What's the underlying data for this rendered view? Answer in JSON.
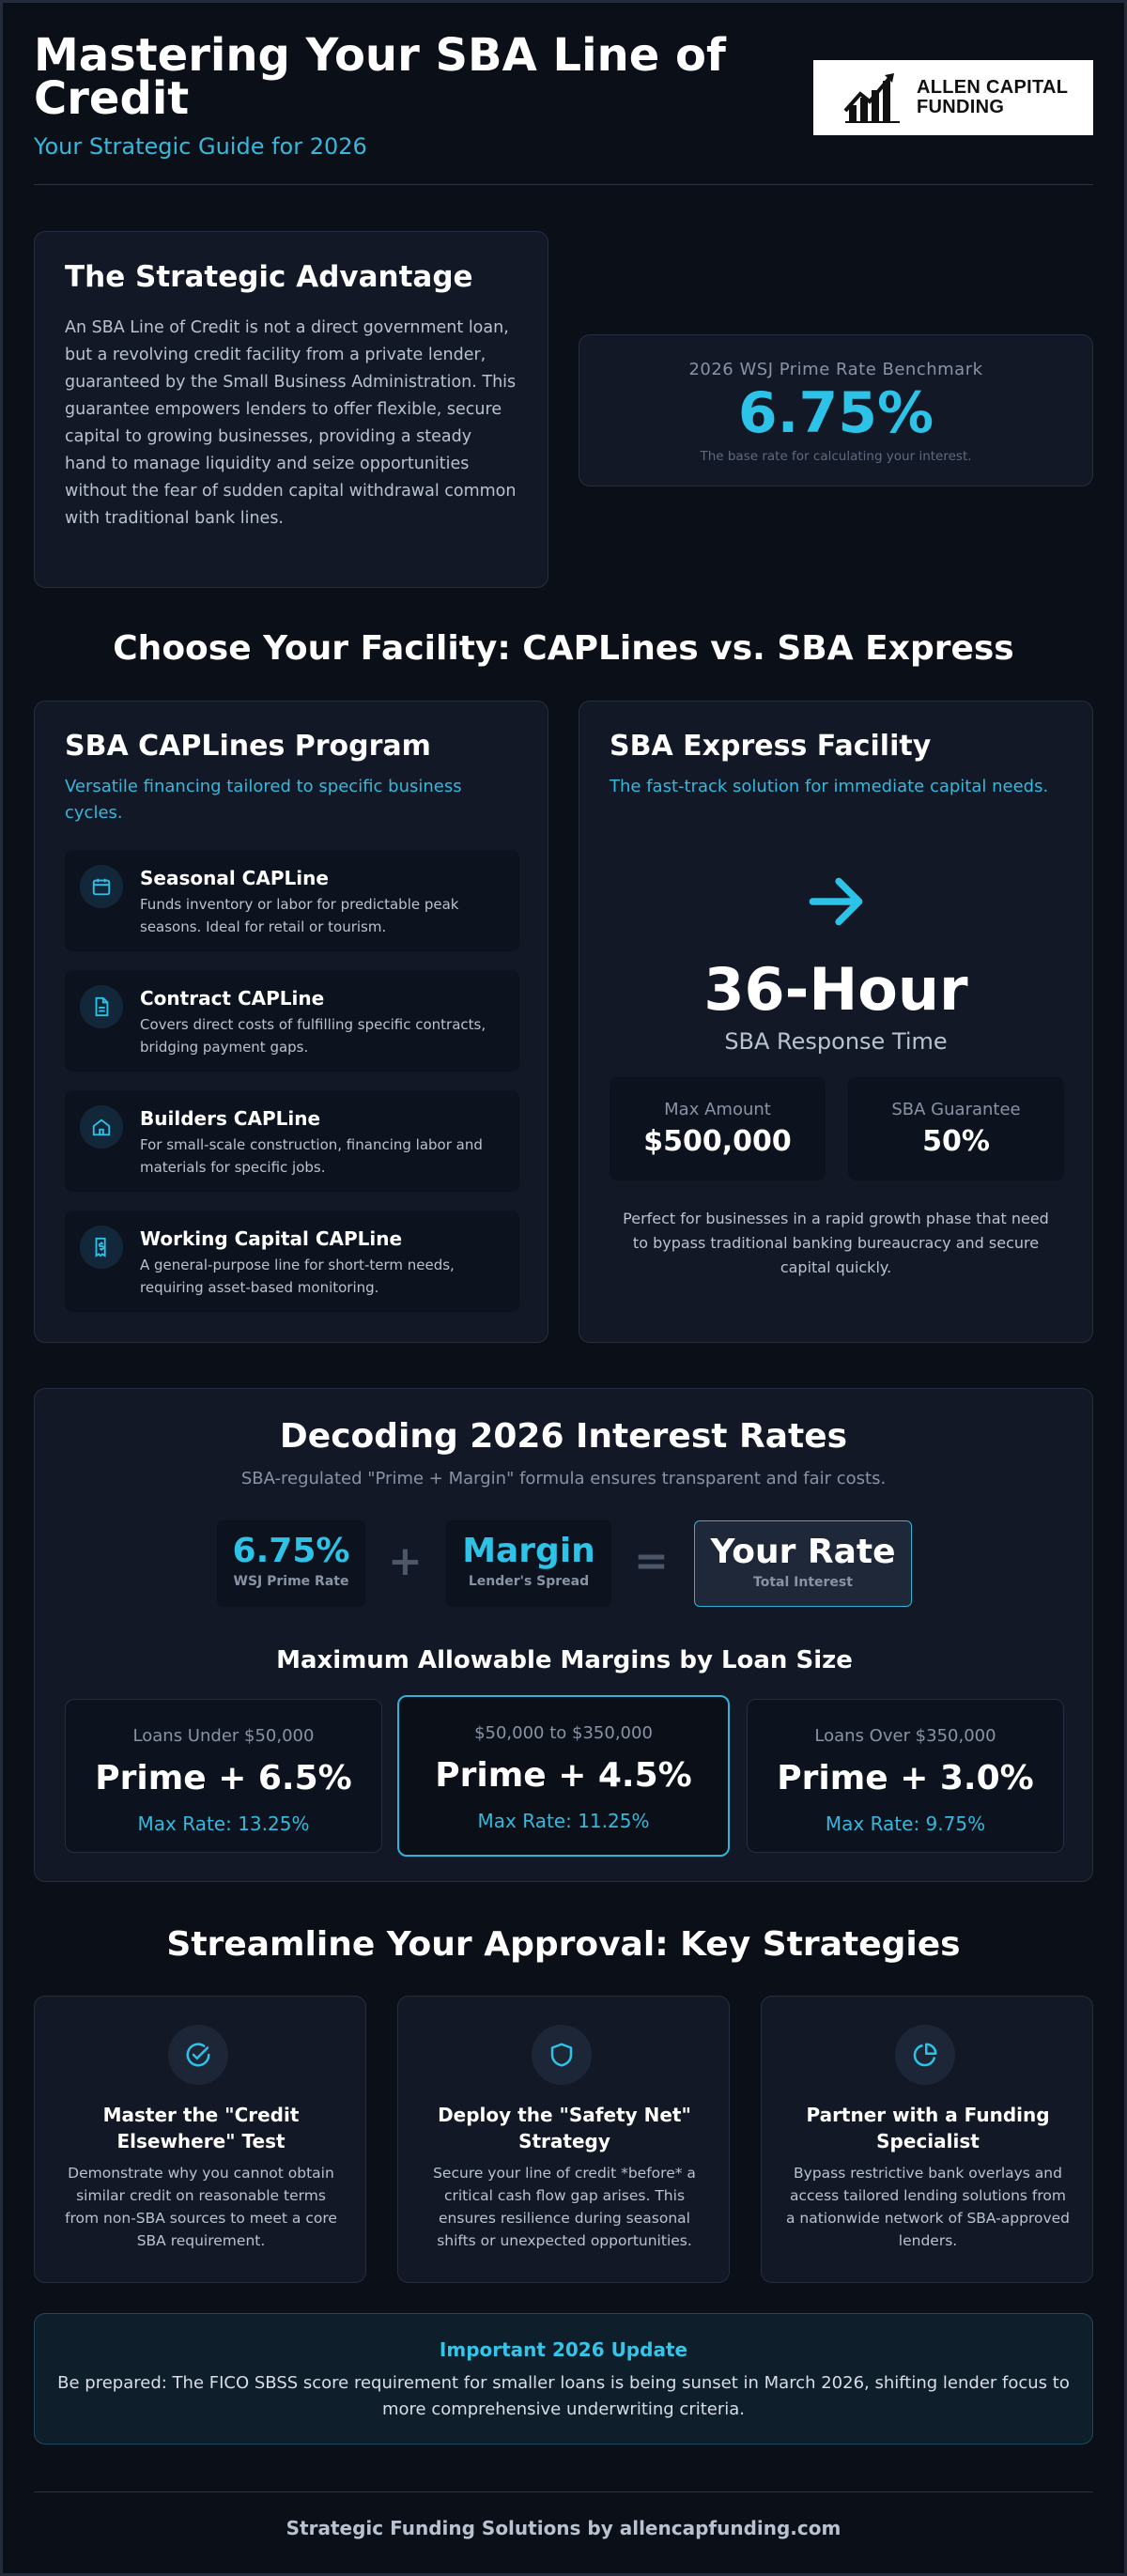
{
  "header": {
    "title": "Mastering Your SBA Line of Credit",
    "subtitle": "Your Strategic Guide for 2026",
    "logo_text_line1": "ALLEN CAPITAL",
    "logo_text_line2": "FUNDING"
  },
  "advantage": {
    "title": "The Strategic Advantage",
    "body": "An SBA Line of Credit is not a direct government loan, but a revolving credit facility from a private lender, guaranteed by the Small Business Administration. This guarantee empowers lenders to offer flexible, secure capital to growing businesses, providing a steady hand to manage liquidity and seize opportunities without the fear of sudden capital withdrawal common with traditional bank lines."
  },
  "prime": {
    "label": "2026 WSJ Prime Rate Benchmark",
    "value": "6.75%",
    "note": "The base rate for calculating your interest."
  },
  "facility_section": {
    "title": "Choose Your Facility: CAPLines vs. SBA Express"
  },
  "caplines": {
    "title": "SBA CAPLines Program",
    "subtitle": "Versatile financing tailored to specific business cycles.",
    "items": [
      {
        "name": "Seasonal CAPLine",
        "desc": "Funds inventory or labor for predictable peak seasons. Ideal for retail or tourism.",
        "icon": "calendar-icon"
      },
      {
        "name": "Contract CAPLine",
        "desc": "Covers direct costs of fulfilling specific contracts, bridging payment gaps.",
        "icon": "document-icon"
      },
      {
        "name": "Builders CAPLine",
        "desc": "For small-scale construction, financing labor and materials for specific jobs.",
        "icon": "home-icon"
      },
      {
        "name": "Working Capital CAPLine",
        "desc": "A general-purpose line for short-term needs, requiring asset-based monitoring.",
        "icon": "receipt-icon"
      }
    ]
  },
  "express": {
    "title": "SBA Express Facility",
    "subtitle": "The fast-track solution for immediate capital needs.",
    "icon": "arrow-right-icon",
    "hours": "36-Hour",
    "response": "SBA Response Time",
    "max_amount_label": "Max Amount",
    "max_amount_value": "$500,000",
    "guarantee_label": "SBA Guarantee",
    "guarantee_value": "50%",
    "note": "Perfect for businesses in a rapid growth phase that need to bypass traditional banking bureaucracy and secure capital quickly."
  },
  "rates": {
    "title": "Decoding 2026 Interest Rates",
    "subtitle": "SBA-regulated \"Prime + Margin\" formula ensures transparent and fair costs.",
    "formula": {
      "prime_value": "6.75%",
      "prime_label": "WSJ Prime Rate",
      "plus": "+",
      "margin_value": "Margin",
      "margin_label": "Lender's Spread",
      "equals": "=",
      "rate_value": "Your Rate",
      "rate_label": "Total Interest"
    },
    "margins_title": "Maximum Allowable Margins by Loan Size",
    "margins": [
      {
        "label": "Loans Under $50,000",
        "value": "Prime + 6.5%",
        "max": "Max Rate: 13.25%"
      },
      {
        "label": "$50,000 to $350,000",
        "value": "Prime + 4.5%",
        "max": "Max Rate: 11.25%"
      },
      {
        "label": "Loans Over $350,000",
        "value": "Prime + 3.0%",
        "max": "Max Rate: 9.75%"
      }
    ]
  },
  "strategies": {
    "title": "Streamline Your Approval: Key Strategies",
    "items": [
      {
        "title": "Master the \"Credit Elsewhere\" Test",
        "desc": "Demonstrate why you cannot obtain similar credit on reasonable terms from non-SBA sources to meet a core SBA requirement.",
        "icon": "check-circle-icon"
      },
      {
        "title": "Deploy the \"Safety Net\" Strategy",
        "desc": "Secure your line of credit *before* a critical cash flow gap arises. This ensures resilience during seasonal shifts or unexpected opportunities.",
        "icon": "shield-icon"
      },
      {
        "title": "Partner with a Funding Specialist",
        "desc": "Bypass restrictive bank overlays and access tailored lending solutions from a nationwide network of SBA-approved lenders.",
        "icon": "pie-chart-icon"
      }
    ]
  },
  "update": {
    "title": "Important 2026 Update",
    "body": "Be prepared: The FICO SBSS score requirement for smaller loans is being sunset in March 2026, shifting lender focus to more comprehensive underwriting criteria."
  },
  "footer": {
    "text": "Strategic Funding Solutions by allencapfunding.com"
  },
  "colors": {
    "accent": "#2dc3e8",
    "background": "#0b0f18",
    "card": "#121826"
  }
}
